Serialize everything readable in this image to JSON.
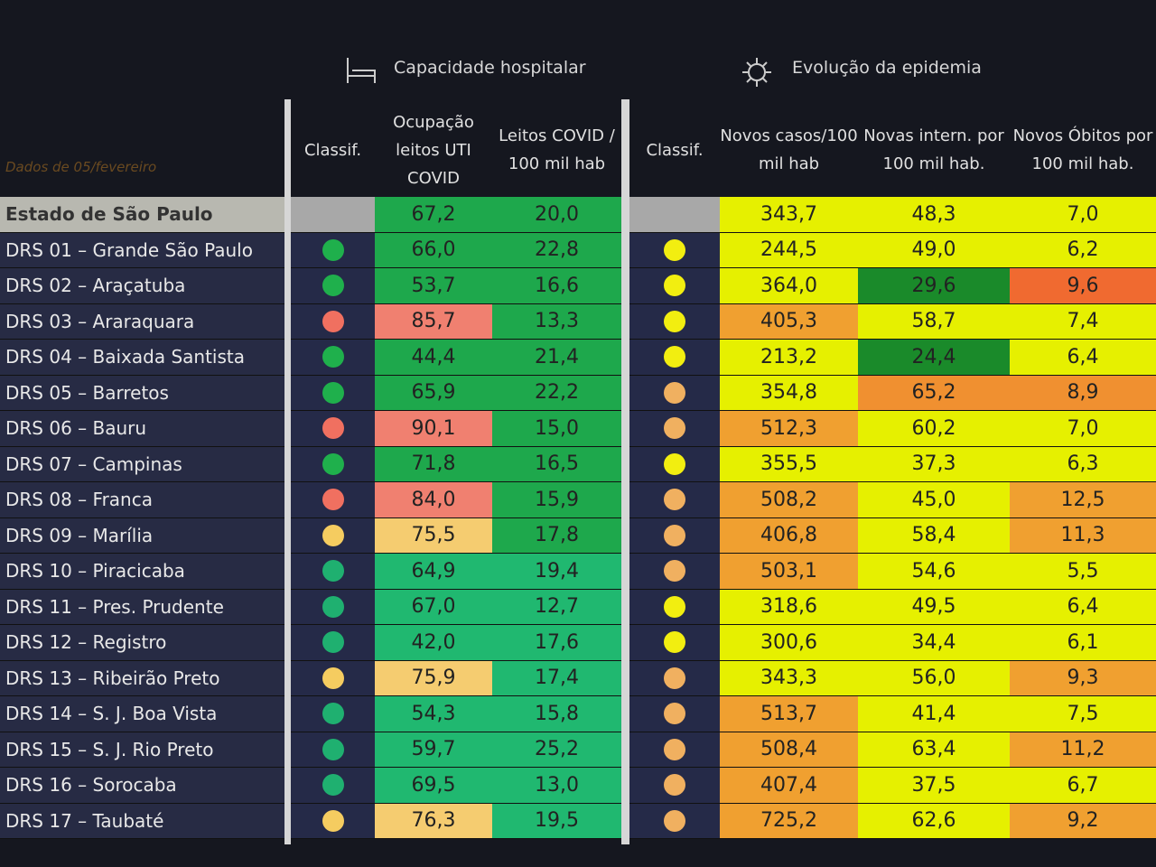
{
  "header": {
    "note": "Dados de 05/fevereiro",
    "groups": [
      "Capacidade hospitalar",
      "Evolução da epidemia"
    ],
    "columns": [
      "Classif.",
      "Ocupação leitos UTI COVID",
      "Leitos COVID / 100 mil hab",
      "Classif.",
      "Novos casos/100 mil hab",
      "Novas intern. por 100 mil hab.",
      "Novos Óbitos por 100 mil hab."
    ]
  },
  "table": {
    "rows": [
      {
        "name": "Estado de São Paulo",
        "dots": [
          null,
          null
        ],
        "cells": [
          "67,2",
          "20,0",
          "343,7",
          "48,3",
          "7,0"
        ],
        "fills": [
          "#1ea84c",
          "#1ea84c",
          "#e6f000",
          "#e6f000",
          "#e6f000"
        ]
      },
      {
        "name": "DRS 01 – Grande São Paulo",
        "dots": [
          "#1fb04c",
          "#f2ee10"
        ],
        "cells": [
          "66,0",
          "22,8",
          "244,5",
          "49,0",
          "6,2"
        ],
        "fills": [
          "#1ea84c",
          "#1ea84c",
          "#e6f000",
          "#e6f000",
          "#e6f000"
        ]
      },
      {
        "name": "DRS 02 – Araçatuba",
        "dots": [
          "#1fb04c",
          "#f2ee10"
        ],
        "cells": [
          "53,7",
          "16,6",
          "364,0",
          "29,6",
          "9,6"
        ],
        "fills": [
          "#1ea84c",
          "#1ea84c",
          "#e6f000",
          "#1a8a2a",
          "#f06a30"
        ]
      },
      {
        "name": "DRS 03 – Araraquara",
        "dots": [
          "#f07060",
          "#f2ee10"
        ],
        "cells": [
          "85,7",
          "13,3",
          "405,3",
          "58,7",
          "7,4"
        ],
        "fills": [
          "#f08070",
          "#1ea84c",
          "#f0a030",
          "#e6f000",
          "#e6f000"
        ]
      },
      {
        "name": "DRS 04 – Baixada Santista",
        "dots": [
          "#1fb04c",
          "#f2ee10"
        ],
        "cells": [
          "44,4",
          "21,4",
          "213,2",
          "24,4",
          "6,4"
        ],
        "fills": [
          "#1ea84c",
          "#1ea84c",
          "#e6f000",
          "#1a8a2a",
          "#e6f000"
        ]
      },
      {
        "name": "DRS 05 – Barretos",
        "dots": [
          "#1fb04c",
          "#f0b060"
        ],
        "cells": [
          "65,9",
          "22,2",
          "354,8",
          "65,2",
          "8,9"
        ],
        "fills": [
          "#1ea84c",
          "#1ea84c",
          "#e6f000",
          "#f09030",
          "#f09030"
        ]
      },
      {
        "name": "DRS 06 – Bauru",
        "dots": [
          "#f07060",
          "#f0b060"
        ],
        "cells": [
          "90,1",
          "15,0",
          "512,3",
          "60,2",
          "7,0"
        ],
        "fills": [
          "#f08070",
          "#1ea84c",
          "#f0a030",
          "#e6f000",
          "#e6f000"
        ]
      },
      {
        "name": "DRS 07 – Campinas",
        "dots": [
          "#1fb04c",
          "#f2ee10"
        ],
        "cells": [
          "71,8",
          "16,5",
          "355,5",
          "37,3",
          "6,3"
        ],
        "fills": [
          "#1ea84c",
          "#1ea84c",
          "#e6f000",
          "#e6f000",
          "#e6f000"
        ]
      },
      {
        "name": "DRS 08 – Franca",
        "dots": [
          "#f07060",
          "#f0b060"
        ],
        "cells": [
          "84,0",
          "15,9",
          "508,2",
          "45,0",
          "12,5"
        ],
        "fills": [
          "#f08070",
          "#1ea84c",
          "#f0a030",
          "#e6f000",
          "#f0a030"
        ]
      },
      {
        "name": "DRS 09 – Marília",
        "dots": [
          "#f5cc60",
          "#f0b060"
        ],
        "cells": [
          "75,5",
          "17,8",
          "406,8",
          "58,4",
          "11,3"
        ],
        "fills": [
          "#f5cc70",
          "#1ea84c",
          "#f0a030",
          "#e6f000",
          "#f0a030"
        ]
      },
      {
        "name": "DRS 10 – Piracicaba",
        "dots": [
          "#1fb070",
          "#f0b060"
        ],
        "cells": [
          "64,9",
          "19,4",
          "503,1",
          "54,6",
          "5,5"
        ],
        "fills": [
          "#20b870",
          "#20b870",
          "#f0a030",
          "#e6f000",
          "#e6f000"
        ]
      },
      {
        "name": "DRS 11 – Pres. Prudente",
        "dots": [
          "#1fb070",
          "#f2ee10"
        ],
        "cells": [
          "67,0",
          "12,7",
          "318,6",
          "49,5",
          "6,4"
        ],
        "fills": [
          "#20b870",
          "#20b870",
          "#e6f000",
          "#e6f000",
          "#e6f000"
        ]
      },
      {
        "name": "DRS 12 – Registro",
        "dots": [
          "#1fb070",
          "#f2ee10"
        ],
        "cells": [
          "42,0",
          "17,6",
          "300,6",
          "34,4",
          "6,1"
        ],
        "fills": [
          "#20b870",
          "#20b870",
          "#e6f000",
          "#e6f000",
          "#e6f000"
        ]
      },
      {
        "name": "DRS 13 – Ribeirão Preto",
        "dots": [
          "#f5cc60",
          "#f0b060"
        ],
        "cells": [
          "75,9",
          "17,4",
          "343,3",
          "56,0",
          "9,3"
        ],
        "fills": [
          "#f5cc70",
          "#20b870",
          "#e6f000",
          "#e6f000",
          "#f0a030"
        ]
      },
      {
        "name": "DRS 14 – S. J. Boa Vista",
        "dots": [
          "#1fb070",
          "#f0b060"
        ],
        "cells": [
          "54,3",
          "15,8",
          "513,7",
          "41,4",
          "7,5"
        ],
        "fills": [
          "#20b870",
          "#20b870",
          "#f0a030",
          "#e6f000",
          "#e6f000"
        ]
      },
      {
        "name": "DRS 15 – S. J. Rio Preto",
        "dots": [
          "#1fb070",
          "#f0b060"
        ],
        "cells": [
          "59,7",
          "25,2",
          "508,4",
          "63,4",
          "11,2"
        ],
        "fills": [
          "#20b870",
          "#20b870",
          "#f0a030",
          "#e6f000",
          "#f0a030"
        ]
      },
      {
        "name": "DRS 16 – Sorocaba",
        "dots": [
          "#1fb070",
          "#f0b060"
        ],
        "cells": [
          "69,5",
          "13,0",
          "407,4",
          "37,5",
          "6,7"
        ],
        "fills": [
          "#20b870",
          "#20b870",
          "#f0a030",
          "#e6f000",
          "#e6f000"
        ]
      },
      {
        "name": "DRS 17 – Taubaté",
        "dots": [
          "#f5cc60",
          "#f0b060"
        ],
        "cells": [
          "76,3",
          "19,5",
          "725,2",
          "62,6",
          "9,2"
        ],
        "fills": [
          "#f5cc70",
          "#20b870",
          "#f0a030",
          "#e6f000",
          "#f0a030"
        ]
      }
    ]
  }
}
